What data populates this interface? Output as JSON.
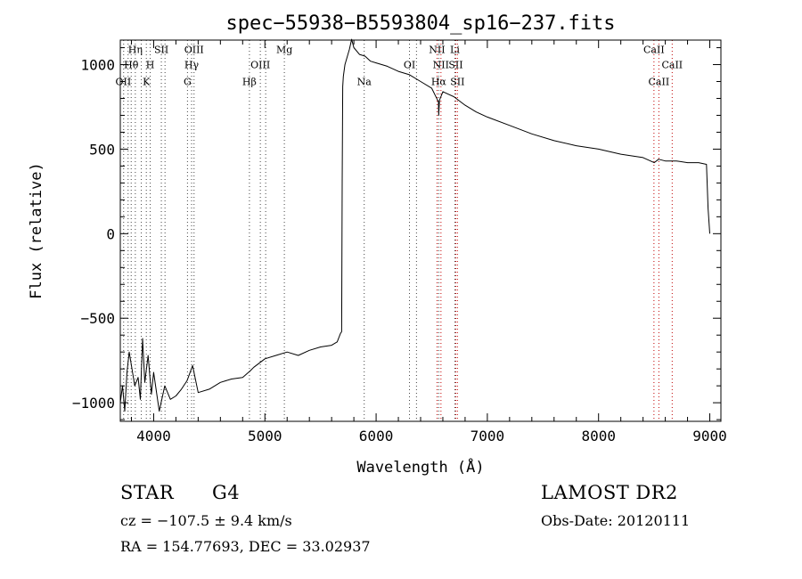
{
  "chart_data": {
    "type": "line",
    "title": "spec−55938−B5593804_sp16−237.fits",
    "xlabel": "Wavelength (Å)",
    "ylabel": "Flux (relative)",
    "xlim": [
      3700,
      9100
    ],
    "ylim": [
      -1110,
      1145
    ],
    "x_ticks": [
      4000,
      5000,
      6000,
      7000,
      8000,
      9000
    ],
    "x_tick_labels": [
      "4000",
      "5000",
      "6000",
      "7000",
      "8000",
      "9000"
    ],
    "y_ticks": [
      -1000,
      -500,
      0,
      500,
      1000
    ],
    "y_tick_labels": [
      "−1000",
      "−500",
      "0",
      "500",
      "1000"
    ],
    "grid": false,
    "series": [
      {
        "color": "#000000",
        "x": [
          3700,
          3720,
          3740,
          3760,
          3780,
          3800,
          3830,
          3860,
          3880,
          3900,
          3920,
          3950,
          3980,
          4000,
          4050,
          4100,
          4150,
          4200,
          4250,
          4300,
          4350,
          4400,
          4500,
          4600,
          4700,
          4800,
          4870,
          4900,
          5000,
          5100,
          5200,
          5300,
          5400,
          5500,
          5600,
          5650,
          5680,
          5690,
          5695,
          5700,
          5705,
          5720,
          5760,
          5780,
          5800,
          5850,
          5900,
          5950,
          6000,
          6100,
          6200,
          6300,
          6400,
          6500,
          6560,
          6563,
          6570,
          6600,
          6700,
          6800,
          6900,
          7000,
          7200,
          7400,
          7600,
          7800,
          8000,
          8200,
          8400,
          8500,
          8540,
          8600,
          8700,
          8800,
          8900,
          8970,
          8985,
          9000
        ],
        "y": [
          -1000,
          -900,
          -1050,
          -820,
          -700,
          -780,
          -900,
          -850,
          -980,
          -620,
          -880,
          -720,
          -950,
          -820,
          -1050,
          -900,
          -980,
          -960,
          -920,
          -870,
          -780,
          -940,
          -920,
          -880,
          -860,
          -850,
          -810,
          -790,
          -740,
          -720,
          -700,
          -720,
          -690,
          -670,
          -660,
          -640,
          -590,
          -580,
          300,
          870,
          930,
          1000,
          1090,
          1150,
          1100,
          1060,
          1050,
          1020,
          1010,
          990,
          960,
          940,
          900,
          860,
          780,
          700,
          790,
          840,
          810,
          760,
          720,
          690,
          640,
          590,
          550,
          520,
          500,
          470,
          450,
          420,
          440,
          430,
          430,
          420,
          420,
          410,
          150,
          0
        ]
      }
    ],
    "lines": [
      {
        "x": 3730,
        "color": "#444444"
      },
      {
        "x": 3770,
        "color": "#444444"
      },
      {
        "x": 3798,
        "color": "#444444"
      },
      {
        "x": 3835,
        "color": "#444444"
      },
      {
        "x": 3889,
        "color": "#444444"
      },
      {
        "x": 3934,
        "color": "#444444"
      },
      {
        "x": 3969,
        "color": "#444444"
      },
      {
        "x": 4069,
        "color": "#444444"
      },
      {
        "x": 4102,
        "color": "#444444"
      },
      {
        "x": 4304,
        "color": "#444444"
      },
      {
        "x": 4341,
        "color": "#444444"
      },
      {
        "x": 4363,
        "color": "#444444"
      },
      {
        "x": 4861,
        "color": "#444444"
      },
      {
        "x": 4959,
        "color": "#444444"
      },
      {
        "x": 5007,
        "color": "#444444"
      },
      {
        "x": 5175,
        "color": "#444444"
      },
      {
        "x": 5893,
        "color": "#444444"
      },
      {
        "x": 6300,
        "color": "#444444"
      },
      {
        "x": 6363,
        "color": "#444444"
      },
      {
        "x": 6548,
        "color": "#c00000"
      },
      {
        "x": 6563,
        "color": "#444444"
      },
      {
        "x": 6583,
        "color": "#c00000"
      },
      {
        "x": 6708,
        "color": "#444444"
      },
      {
        "x": 6716,
        "color": "#c00000"
      },
      {
        "x": 6731,
        "color": "#c00000"
      },
      {
        "x": 8498,
        "color": "#c00000"
      },
      {
        "x": 8542,
        "color": "#c00000"
      },
      {
        "x": 8662,
        "color": "#c00000"
      }
    ],
    "annotations": [
      {
        "text": "Hη",
        "x": 3835,
        "y": 1090
      },
      {
        "text": "SII",
        "x": 4069,
        "y": 1090
      },
      {
        "text": "OIII",
        "x": 4363,
        "y": 1090
      },
      {
        "text": "Mg",
        "x": 5175,
        "y": 1090
      },
      {
        "text": "NII",
        "x": 6548,
        "y": 1090
      },
      {
        "text": "Li",
        "x": 6708,
        "y": 1090
      },
      {
        "text": "CaII",
        "x": 8498,
        "y": 1090
      },
      {
        "text": "Hθ",
        "x": 3798,
        "y": 1000
      },
      {
        "text": "H",
        "x": 3969,
        "y": 1000
      },
      {
        "text": "Hγ",
        "x": 4341,
        "y": 1000
      },
      {
        "text": "OIII",
        "x": 4959,
        "y": 1000
      },
      {
        "text": "OI",
        "x": 6300,
        "y": 1000
      },
      {
        "text": "NII",
        "x": 6583,
        "y": 1000
      },
      {
        "text": "SII",
        "x": 6716,
        "y": 1000
      },
      {
        "text": "CaII",
        "x": 8662,
        "y": 1000
      },
      {
        "text": "OII",
        "x": 3727,
        "y": 900
      },
      {
        "text": "K",
        "x": 3934,
        "y": 900
      },
      {
        "text": "G",
        "x": 4304,
        "y": 900
      },
      {
        "text": "Hβ",
        "x": 4861,
        "y": 900
      },
      {
        "text": "Na",
        "x": 5893,
        "y": 900
      },
      {
        "text": "Hα",
        "x": 6563,
        "y": 900
      },
      {
        "text": "SII",
        "x": 6731,
        "y": 900
      },
      {
        "text": "CaII",
        "x": 8542,
        "y": 900
      }
    ]
  },
  "info": {
    "object_class": "STAR",
    "subclass": "G4",
    "survey": "LAMOST DR2",
    "velocity": "cz = −107.5 ± 9.4 km/s",
    "obs_date": "Obs-Date: 20120111",
    "coords": "RA = 154.77693, DEC =  33.02937"
  }
}
